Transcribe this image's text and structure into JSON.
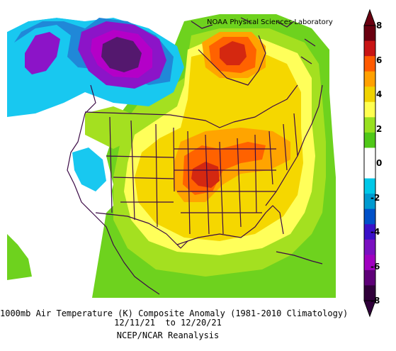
{
  "credit": "NOAA Physical Sciences Laboratory",
  "caption": {
    "line1": "1000mb Air Temperature (K) Composite Anomaly (1981-2010 Climatology)",
    "line2": "12/11/21  to 12/20/21",
    "line3": "NCEP/NCAR Reanalysis"
  },
  "colorbar": {
    "labels": [
      "8",
      "6",
      "4",
      "2",
      "0",
      "-2",
      "-4",
      "-6",
      "-8"
    ],
    "colors": [
      "#6a0010",
      "#c81414",
      "#ff5a00",
      "#ffa000",
      "#f0d200",
      "#ffff50",
      "#98e020",
      "#50c818",
      "#ffffff",
      "#ffffff",
      "#00c8e8",
      "#009ad0",
      "#0050c8",
      "#3a10c8",
      "#7a10c0",
      "#a000c0",
      "#5e0078",
      "#30003a"
    ]
  },
  "map": {
    "region": "North America",
    "colors": {
      "green": "#6ed21e",
      "lightgreen": "#a4e020",
      "lightyellow": "#ffff5a",
      "yellow": "#f5d700",
      "orange": "#ffa400",
      "darkorange": "#ff6200",
      "red": "#d42810",
      "cyan": "#18c8f0",
      "blue": "#2088d8",
      "purple": "#8c14c8",
      "magenta": "#b400c8",
      "deepviolet": "#54186e",
      "boundaries": "#3c0a46"
    }
  }
}
